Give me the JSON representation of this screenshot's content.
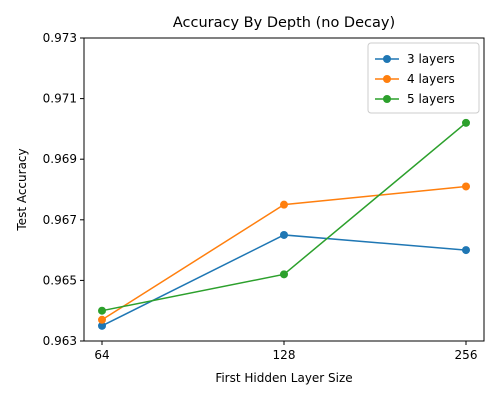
{
  "chart_data": {
    "type": "line",
    "title": "Accuracy By Depth (no Decay)",
    "xlabel": "First Hidden Layer Size",
    "ylabel": "Test Accuracy",
    "categories": [
      "64",
      "128",
      "256"
    ],
    "yticks": [
      "0.963",
      "0.965",
      "0.967",
      "0.969",
      "0.971",
      "0.973"
    ],
    "ylim": [
      0.963,
      0.973
    ],
    "grid": false,
    "legend_position": "top-right",
    "series": [
      {
        "name": "3 layers",
        "color": "#1f77b4",
        "values": [
          0.9635,
          0.9665,
          0.966
        ]
      },
      {
        "name": "4 layers",
        "color": "#ff7f0e",
        "values": [
          0.9637,
          0.9675,
          0.9681
        ]
      },
      {
        "name": "5 layers",
        "color": "#2ca02c",
        "values": [
          0.964,
          0.9652,
          0.9702
        ]
      }
    ]
  }
}
